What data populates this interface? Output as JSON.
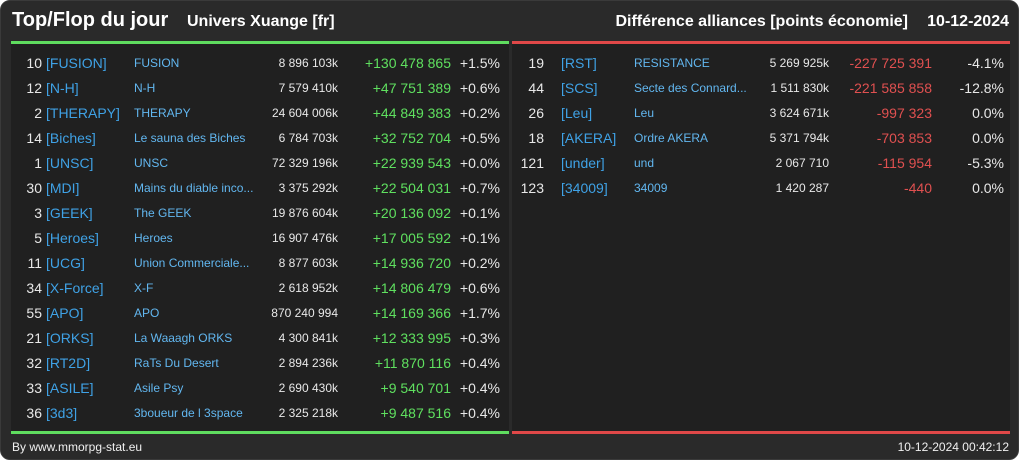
{
  "header": {
    "title": "Top/Flop du jour",
    "univers": "Univers Xuange [fr]",
    "diff_label": "Différence alliances [points économie]",
    "date": "10-12-2024"
  },
  "colors": {
    "positive": "#5fe05f",
    "negative": "#e05050",
    "tag": "#3fa2e6",
    "top_border": "#5fdc5f",
    "flop_border": "#e04848"
  },
  "top": [
    {
      "rank": "10",
      "tag": "[FUSION]",
      "name": "FUSION",
      "points": "8 896 103k",
      "delta": "+130 478 865",
      "pct": "+1.5%"
    },
    {
      "rank": "12",
      "tag": "[N-H]",
      "name": "N-H",
      "points": "7 579 410k",
      "delta": "+47 751 389",
      "pct": "+0.6%"
    },
    {
      "rank": "2",
      "tag": "[THERAPY]",
      "name": "THERAPY",
      "points": "24 604 006k",
      "delta": "+44 849 383",
      "pct": "+0.2%"
    },
    {
      "rank": "14",
      "tag": "[Biches]",
      "name": "Le sauna des Biches",
      "points": "6 784 703k",
      "delta": "+32 752 704",
      "pct": "+0.5%"
    },
    {
      "rank": "1",
      "tag": "[UNSC]",
      "name": "UNSC",
      "points": "72 329 196k",
      "delta": "+22 939 543",
      "pct": "+0.0%"
    },
    {
      "rank": "30",
      "tag": "[MDI]",
      "name": "Mains du diable inco...",
      "points": "3 375 292k",
      "delta": "+22 504 031",
      "pct": "+0.7%"
    },
    {
      "rank": "3",
      "tag": "[GEEK]",
      "name": "The GEEK",
      "points": "19 876 604k",
      "delta": "+20 136 092",
      "pct": "+0.1%"
    },
    {
      "rank": "5",
      "tag": "[Heroes]",
      "name": "Heroes",
      "points": "16 907 476k",
      "delta": "+17 005 592",
      "pct": "+0.1%"
    },
    {
      "rank": "11",
      "tag": "[UCG]",
      "name": "Union Commerciale...",
      "points": "8 877 603k",
      "delta": "+14 936 720",
      "pct": "+0.2%"
    },
    {
      "rank": "34",
      "tag": "[X-Force]",
      "name": "X-F",
      "points": "2 618 952k",
      "delta": "+14 806 479",
      "pct": "+0.6%"
    },
    {
      "rank": "55",
      "tag": "[APO]",
      "name": "APO",
      "points": "870 240 994",
      "delta": "+14 169 366",
      "pct": "+1.7%"
    },
    {
      "rank": "21",
      "tag": "[ORKS]",
      "name": "La Waaagh ORKS",
      "points": "4 300 841k",
      "delta": "+12 333 995",
      "pct": "+0.3%"
    },
    {
      "rank": "32",
      "tag": "[RT2D]",
      "name": "RaTs Du Desert",
      "points": "2 894 236k",
      "delta": "+11 870 116",
      "pct": "+0.4%"
    },
    {
      "rank": "33",
      "tag": "[ASILE]",
      "name": "Asile Psy",
      "points": "2 690 430k",
      "delta": "+9 540 701",
      "pct": "+0.4%"
    },
    {
      "rank": "36",
      "tag": "[3d3]",
      "name": "3boueur de l 3space",
      "points": "2 325 218k",
      "delta": "+9 487 516",
      "pct": "+0.4%"
    }
  ],
  "flop": [
    {
      "rank": "19",
      "tag": "[RST]",
      "name": "RESISTANCE",
      "points": "5 269 925k",
      "delta": "-227 725 391",
      "pct": "-4.1%"
    },
    {
      "rank": "44",
      "tag": "[SCS]",
      "name": "Secte des Connard...",
      "points": "1 511 830k",
      "delta": "-221 585 858",
      "pct": "-12.8%"
    },
    {
      "rank": "26",
      "tag": "[Leu]",
      "name": "Leu",
      "points": "3 624 671k",
      "delta": "-997 323",
      "pct": "0.0%"
    },
    {
      "rank": "18",
      "tag": "[AKERA]",
      "name": "Ordre AKERA",
      "points": "5 371 794k",
      "delta": "-703 853",
      "pct": "0.0%"
    },
    {
      "rank": "121",
      "tag": "[under]",
      "name": "und",
      "points": "2 067 710",
      "delta": "-115 954",
      "pct": "-5.3%"
    },
    {
      "rank": "123",
      "tag": "[34009]",
      "name": "34009",
      "points": "1 420 287",
      "delta": "-440",
      "pct": "0.0%"
    }
  ],
  "footer": {
    "credit": "By www.mmorpg-stat.eu",
    "timestamp": "10-12-2024 00:42:12"
  }
}
